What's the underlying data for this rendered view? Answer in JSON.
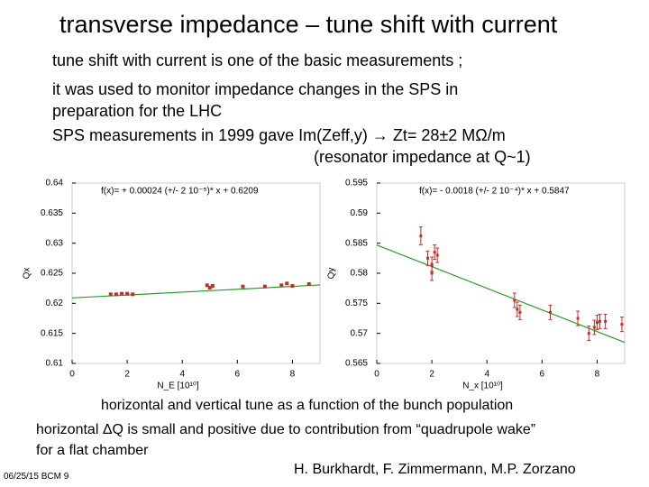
{
  "slide": {
    "title": "transverse impedance – tune shift with current",
    "bullets": [
      "tune shift with current is one of the basic measurements ;",
      "it was used to monitor impedance changes in the SPS in",
      "preparation for the LHC",
      "SPS measurements in 1999 gave Im(Zeff,y) → Zt= 28±2 MΩ/m",
      "(resonator impedance at Q~1)"
    ],
    "caption": "horizontal and vertical tune as a function of the bunch population",
    "note": [
      "horizontal ΔQ is small and positive due to contribution from “quadrupole wake”",
      "for a flat chamber"
    ],
    "footer": "06/25/15 BCM 9",
    "authors": "H. Burkhardt, F. Zimmermann, M.P. Zorzano"
  },
  "chart_data": [
    {
      "type": "scatter",
      "x_label": "N_E [10¹⁰]",
      "y_label": "Qx",
      "xlim": [
        0,
        9
      ],
      "xticks": [
        0,
        2,
        4,
        6,
        8
      ],
      "ylim": [
        0.61,
        0.64
      ],
      "yticks": [
        0.64,
        0.635,
        0.63,
        0.625,
        0.62,
        0.615,
        0.61
      ],
      "fit": {
        "label": "f(x)= + 0.00024 (+/- 2 10⁻⁵)* x + 0.6209",
        "slope": 0.00024,
        "intercept": 0.6209,
        "color": "#2a9a2a"
      },
      "color": "#c0302a",
      "x": [
        1.4,
        1.6,
        1.8,
        2.0,
        2.2,
        4.9,
        5.0,
        5.1,
        6.2,
        7.0,
        7.6,
        7.8,
        8.0,
        8.6
      ],
      "values": [
        0.6215,
        0.6215,
        0.6216,
        0.6216,
        0.6215,
        0.623,
        0.6226,
        0.6229,
        0.6228,
        0.6228,
        0.623,
        0.6233,
        0.6229,
        0.6232
      ]
    },
    {
      "type": "errorbar",
      "x_label": "N_x [10¹⁰]",
      "y_label": "Qy",
      "xlim": [
        0,
        9
      ],
      "xticks": [
        0,
        2,
        4,
        6,
        8
      ],
      "ylim": [
        0.565,
        0.595
      ],
      "yticks": [
        0.595,
        0.59,
        0.585,
        0.58,
        0.575,
        0.57,
        0.565
      ],
      "fit": {
        "label": "f(x)= - 0.0018 (+/- 2 10⁻⁴)* x + 0.5847",
        "slope": -0.0018,
        "intercept": 0.5847,
        "color": "#2a9a2a"
      },
      "color": "#c0302a",
      "x": [
        1.6,
        1.85,
        2.0,
        2.1,
        2.2,
        2.0,
        5.0,
        5.1,
        5.2,
        6.3,
        7.3,
        7.7,
        7.9,
        8.0,
        8.1,
        8.3,
        8.9
      ],
      "values": [
        0.5862,
        0.5825,
        0.5815,
        0.5835,
        0.583,
        0.58,
        0.5755,
        0.574,
        0.5735,
        0.5735,
        0.5725,
        0.57,
        0.571,
        0.5718,
        0.572,
        0.572,
        0.5715
      ],
      "errors": [
        0.0015,
        0.0012,
        0.0012,
        0.0012,
        0.0012,
        0.0012,
        0.0012,
        0.0012,
        0.0012,
        0.0012,
        0.0012,
        0.0012,
        0.0012,
        0.0012,
        0.0012,
        0.0012,
        0.0012
      ]
    }
  ]
}
